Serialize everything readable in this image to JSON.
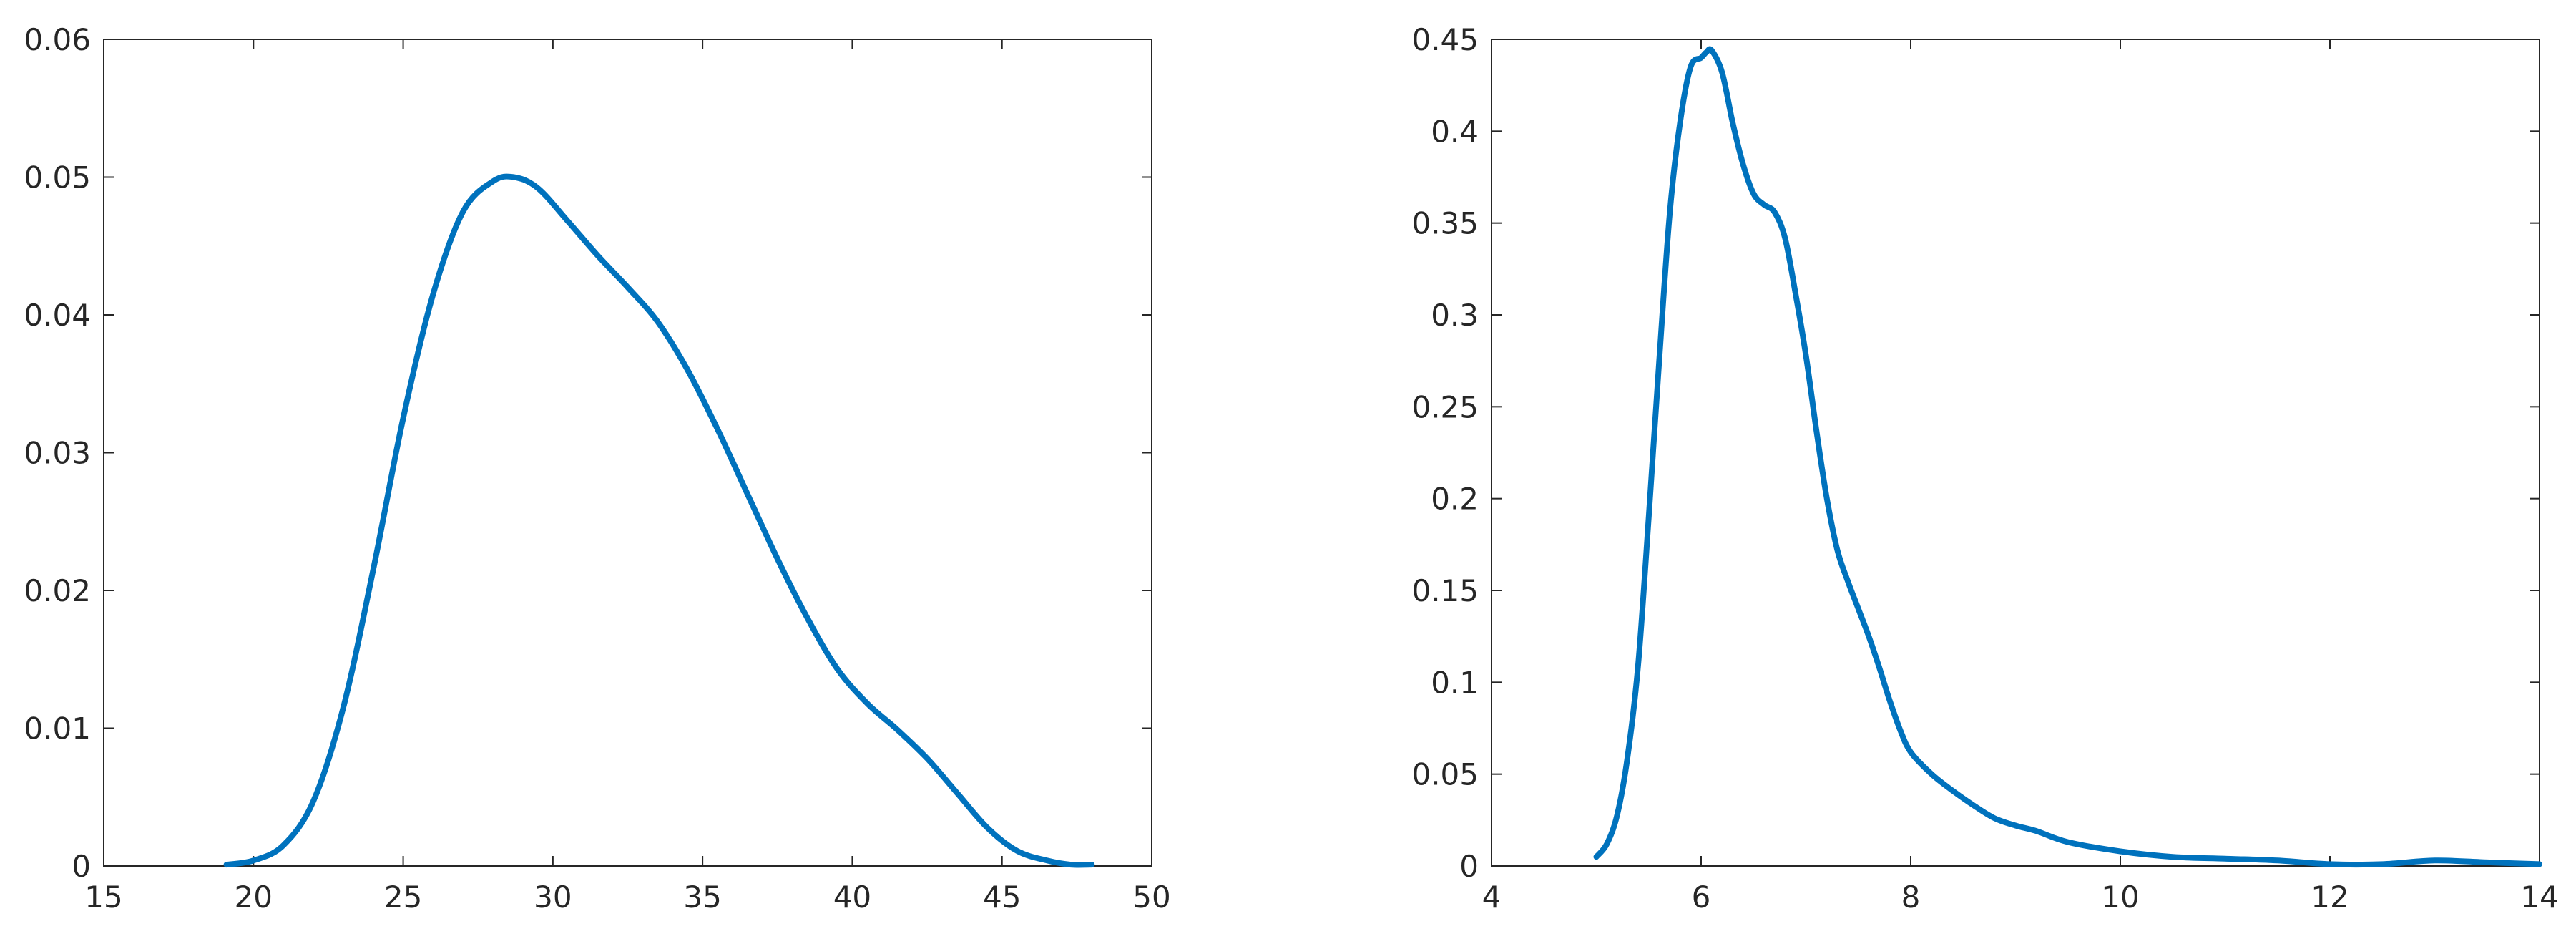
{
  "colors": {
    "line": "#0072BD",
    "axes": "#262626"
  },
  "chart_data": [
    {
      "type": "line",
      "title": "",
      "xlabel": "",
      "ylabel": "",
      "xlim": [
        15,
        50
      ],
      "ylim": [
        0,
        0.06
      ],
      "xticks": [
        15,
        20,
        25,
        30,
        35,
        40,
        45,
        50
      ],
      "xtick_labels": [
        "15",
        "20",
        "25",
        "30",
        "35",
        "40",
        "45",
        "50"
      ],
      "yticks": [
        0,
        0.01,
        0.02,
        0.03,
        0.04,
        0.05,
        0.06
      ],
      "ytick_labels": [
        "0",
        "0.01",
        "0.02",
        "0.03",
        "0.04",
        "0.05",
        "0.06"
      ],
      "grid": false,
      "series": [
        {
          "x": [
            19.1,
            20,
            21,
            22,
            23,
            24,
            25,
            26,
            27,
            28,
            28.7,
            29.5,
            30.5,
            31.5,
            32.5,
            33.5,
            34.5,
            35.5,
            36.5,
            37.5,
            38.5,
            39.5,
            40.5,
            41.5,
            42.5,
            43.5,
            44.5,
            45.5,
            46.5,
            47.3,
            48.0
          ],
          "y": [
            0.0001,
            0.0004,
            0.0015,
            0.0047,
            0.0115,
            0.0215,
            0.0325,
            0.0415,
            0.0475,
            0.0497,
            0.05,
            0.0492,
            0.0468,
            0.0443,
            0.042,
            0.0395,
            0.036,
            0.0317,
            0.027,
            0.0223,
            0.018,
            0.0143,
            0.0118,
            0.0099,
            0.0078,
            0.0053,
            0.0028,
            0.0011,
            0.0004,
            0.0001,
            0.0001
          ]
        }
      ]
    },
    {
      "type": "line",
      "title": "",
      "xlabel": "",
      "ylabel": "",
      "xlim": [
        4,
        14
      ],
      "ylim": [
        0,
        0.45
      ],
      "xticks": [
        4,
        6,
        8,
        10,
        12,
        14
      ],
      "xtick_labels": [
        "4",
        "6",
        "8",
        "10",
        "12",
        "14"
      ],
      "yticks": [
        0,
        0.05,
        0.1,
        0.15,
        0.2,
        0.25,
        0.3,
        0.35,
        0.4,
        0.45
      ],
      "ytick_labels": [
        "0",
        "0.05",
        "0.1",
        "0.15",
        "0.2",
        "0.25",
        "0.3",
        "0.35",
        "0.4",
        "0.45"
      ],
      "grid": false,
      "series": [
        {
          "x": [
            5.0,
            5.1,
            5.2,
            5.3,
            5.4,
            5.5,
            5.6,
            5.7,
            5.8,
            5.9,
            6.0,
            6.05,
            6.1,
            6.2,
            6.3,
            6.4,
            6.5,
            6.6,
            6.7,
            6.8,
            6.9,
            7.0,
            7.1,
            7.2,
            7.3,
            7.4,
            7.5,
            7.6,
            7.7,
            7.8,
            7.9,
            8.0,
            8.2,
            8.4,
            8.6,
            8.8,
            9.0,
            9.2,
            9.5,
            10.0,
            10.5,
            11.0,
            11.5,
            12.0,
            12.5,
            13.0,
            13.5,
            14.0
          ],
          "y": [
            0.005,
            0.012,
            0.028,
            0.06,
            0.11,
            0.19,
            0.275,
            0.355,
            0.405,
            0.435,
            0.44,
            0.443,
            0.444,
            0.432,
            0.405,
            0.382,
            0.366,
            0.36,
            0.356,
            0.342,
            0.312,
            0.278,
            0.237,
            0.2,
            0.172,
            0.155,
            0.14,
            0.125,
            0.108,
            0.09,
            0.074,
            0.062,
            0.05,
            0.041,
            0.033,
            0.026,
            0.022,
            0.019,
            0.013,
            0.008,
            0.005,
            0.004,
            0.003,
            0.001,
            0.001,
            0.003,
            0.002,
            0.001
          ]
        }
      ]
    }
  ]
}
